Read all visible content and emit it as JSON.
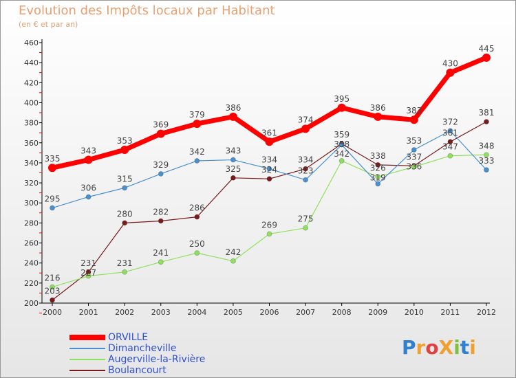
{
  "chart_data": {
    "type": "line",
    "title": "Evolution des Impôts locaux par Habitant",
    "subtitle": "(en € et par an)",
    "x": [
      "2000",
      "2001",
      "2002",
      "2003",
      "2004",
      "2005",
      "2006",
      "2007",
      "2008",
      "2009",
      "2010",
      "2011",
      "2012"
    ],
    "ylim": [
      200,
      460
    ],
    "yticks": [
      200,
      220,
      240,
      260,
      280,
      300,
      320,
      340,
      360,
      380,
      400,
      420,
      440,
      460
    ],
    "series": [
      {
        "name": "ORVILLE",
        "color": "#ff0000",
        "width": 7,
        "values": [
          335,
          343,
          353,
          369,
          379,
          386,
          361,
          374,
          395,
          386,
          383,
          430,
          445
        ]
      },
      {
        "name": "Dimancheville",
        "color": "#4a90d0",
        "width": 1.2,
        "values": [
          295,
          306,
          315,
          329,
          342,
          343,
          334,
          323,
          358,
          319,
          353,
          372,
          333
        ]
      },
      {
        "name": "Augerville-la-Rivière",
        "color": "#90e060",
        "width": 1.2,
        "values": [
          216,
          227,
          231,
          241,
          250,
          242,
          269,
          275,
          342,
          326,
          336,
          347,
          348
        ]
      },
      {
        "name": "Boulancourt",
        "color": "#7a1a1a",
        "width": 1.2,
        "values": [
          203,
          231,
          280,
          282,
          286,
          325,
          324,
          334,
          359,
          338,
          337,
          361,
          381
        ]
      }
    ]
  },
  "logo": "ProXiti"
}
